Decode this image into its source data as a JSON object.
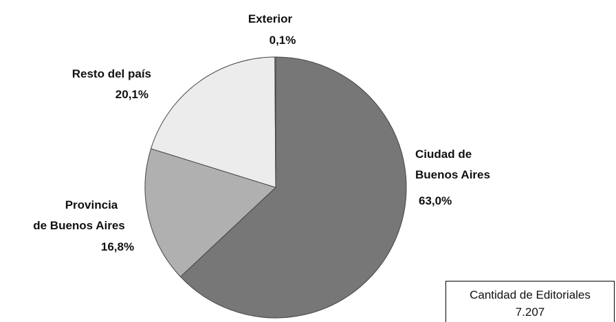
{
  "chart_data": {
    "type": "pie",
    "slices": [
      {
        "label_lines": [
          "Ciudad de",
          "Buenos Aires"
        ],
        "value_label": "63,0%",
        "value": 63.0,
        "color": "#777777"
      },
      {
        "label_lines": [
          "Provincia",
          "de Buenos Aires"
        ],
        "value_label": "16,8%",
        "value": 16.8,
        "color": "#b0b0b0"
      },
      {
        "label_lines": [
          "Resto del país"
        ],
        "value_label": "20,1%",
        "value": 20.1,
        "color": "#ececec"
      },
      {
        "label_lines": [
          "Exterior"
        ],
        "value_label": "0,1%",
        "value": 0.1,
        "color": "#ffffff"
      }
    ],
    "start": "top",
    "direction": "clockwise",
    "total": {
      "title": "Cantidad de Editoriales",
      "value": "7.207"
    }
  }
}
